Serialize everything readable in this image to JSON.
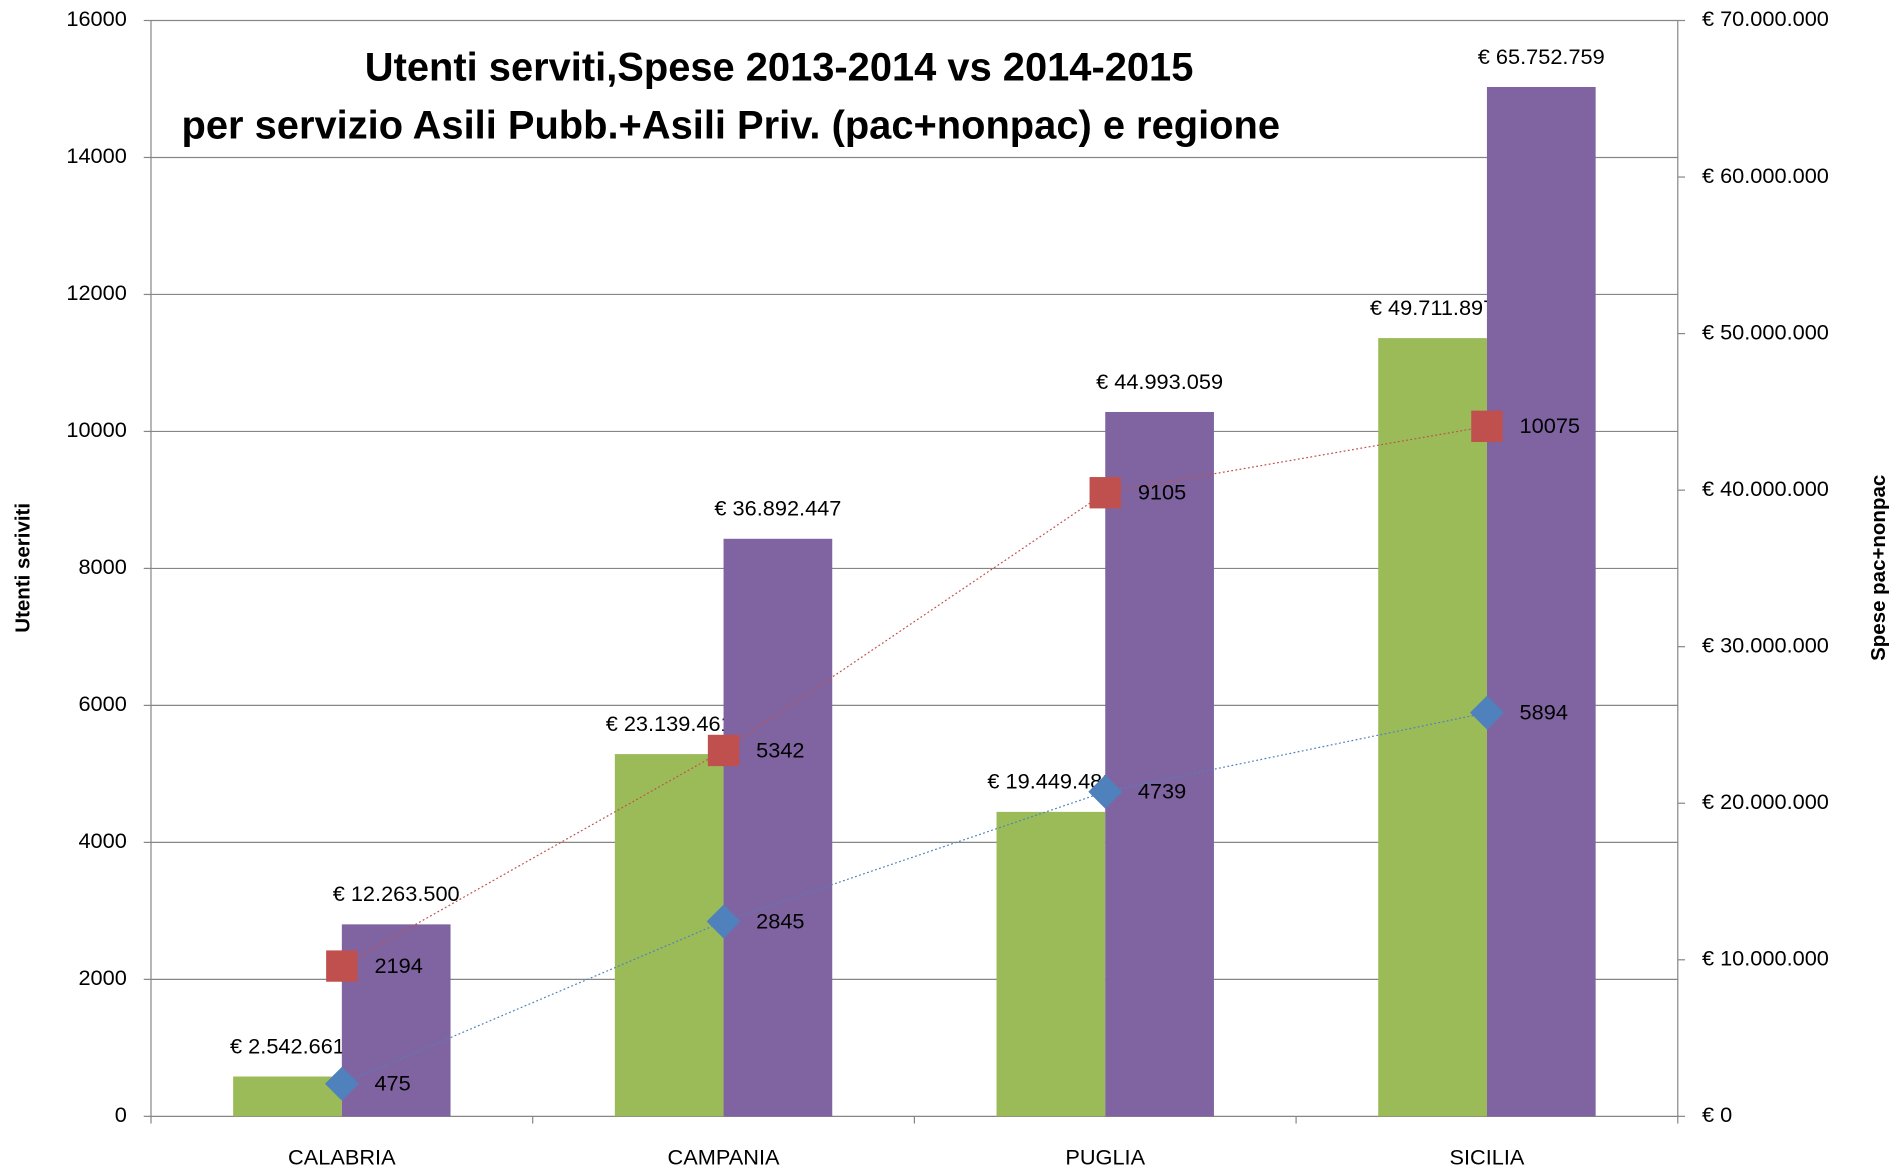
{
  "chart_data": {
    "type": "bar",
    "title": [
      "Utenti serviti,Spese 2013-2014 vs 2014-2015",
      "per servizio Asili Pubb.+Asili Priv. (pac+nonpac) e regione"
    ],
    "y_label": "Utenti seriviti",
    "y2_label": "Spese pac+nonpac",
    "categories": [
      "CALABRIA",
      "CAMPANIA",
      "PUGLIA",
      "SICILIA"
    ],
    "ylim": [
      0,
      16000
    ],
    "yticks": [
      0,
      2000,
      4000,
      6000,
      8000,
      10000,
      12000,
      14000,
      16000
    ],
    "y2lim": [
      0,
      70000000
    ],
    "y2ticks": [
      {
        "value": 0,
        "label": "€ 0"
      },
      {
        "value": 10000000,
        "label": "€ 10.000.000"
      },
      {
        "value": 20000000,
        "label": "€ 20.000.000"
      },
      {
        "value": 30000000,
        "label": "€ 30.000.000"
      },
      {
        "value": 40000000,
        "label": "€ 40.000.000"
      },
      {
        "value": 50000000,
        "label": "€ 50.000.000"
      },
      {
        "value": 60000000,
        "label": "€ 60.000.000"
      },
      {
        "value": 70000000,
        "label": "€ 70.000.000"
      }
    ],
    "grid": true,
    "series": [
      {
        "type": "bar",
        "axis": "y2",
        "color": "#9bbb59",
        "values": [
          2542661,
          23139461,
          19449483,
          49711897
        ],
        "value_labels": [
          "€ 2.542.661",
          "€ 23.139.461",
          "€ 19.449.483",
          "€ 49.711.897"
        ]
      },
      {
        "type": "bar",
        "axis": "y2",
        "color": "#8064a2",
        "values": [
          12263500,
          36892447,
          44993059,
          65752759
        ],
        "value_labels": [
          "€ 12.263.500",
          "€ 36.892.447",
          "€ 44.993.059",
          "€ 65.752.759"
        ]
      },
      {
        "type": "line",
        "marker": "diamond",
        "color": "#4f81bd",
        "values": [
          475,
          2845,
          4739,
          5894
        ]
      },
      {
        "type": "line",
        "marker": "square",
        "color": "#c0504d",
        "values": [
          2194,
          5342,
          9105,
          10075
        ]
      }
    ]
  }
}
